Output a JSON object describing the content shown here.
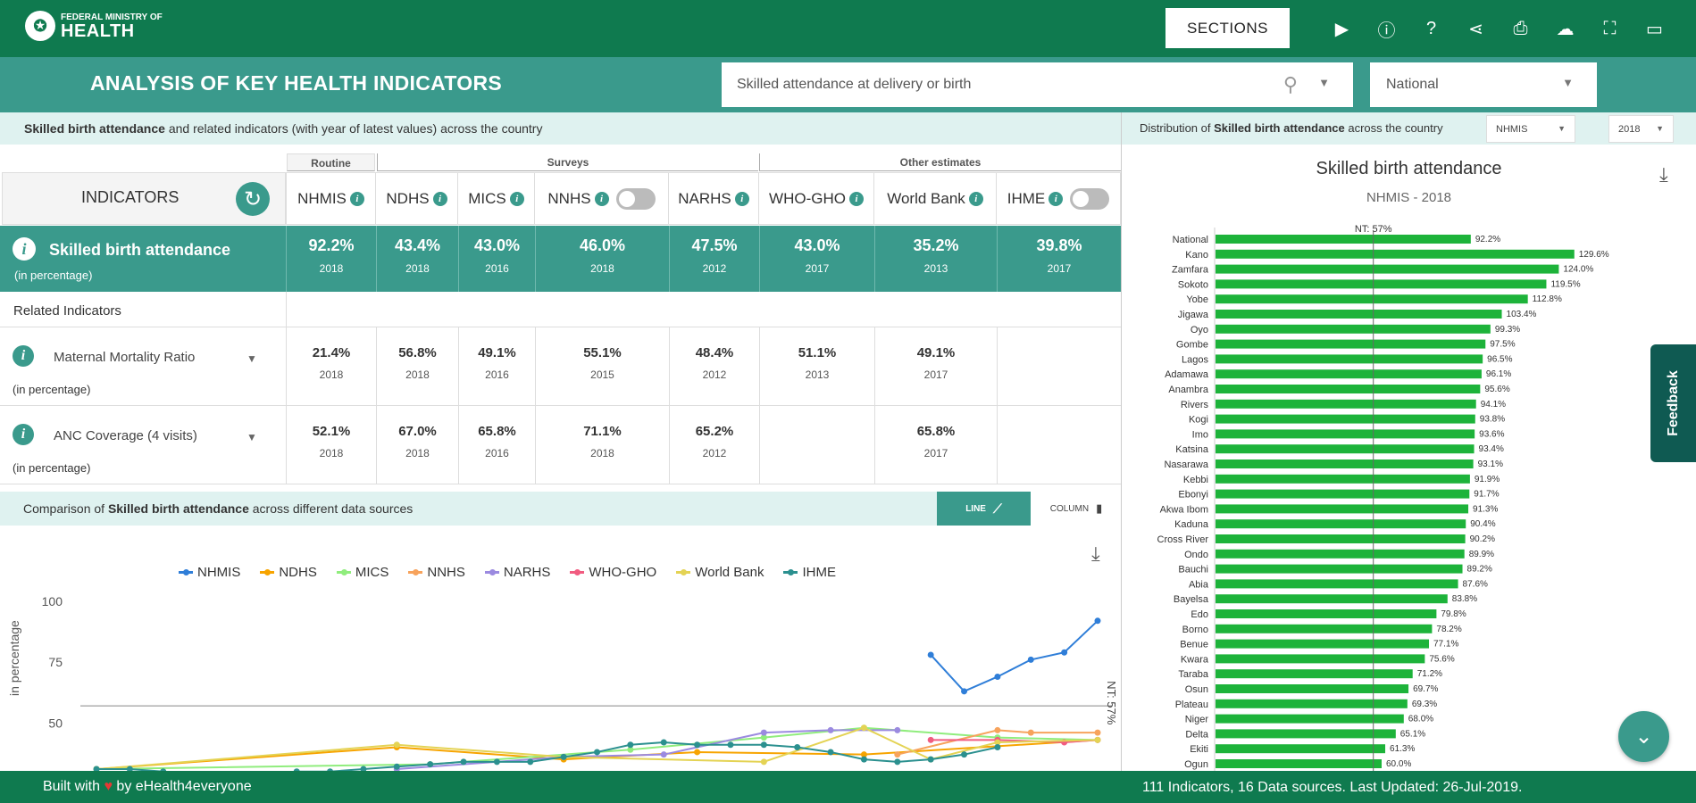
{
  "header": {
    "logo_top": "FEDERAL MINISTRY OF",
    "logo_main": "HEALTH",
    "sections_label": "SECTIONS",
    "icons": [
      "play-icon",
      "info-icon",
      "help-icon",
      "share-icon",
      "print-icon",
      "cloud-download-icon",
      "fullscreen-icon",
      "tablet-icon"
    ]
  },
  "subheader": {
    "title": "ANALYSIS OF KEY HEALTH INDICATORS",
    "search_value": "Skilled attendance at delivery or birth",
    "region_value": "National"
  },
  "indicators_band": {
    "bold": "Skilled birth attendance",
    "rest": " and related indicators (with year of latest values) across the country"
  },
  "distribution_band": {
    "prefix": "Distribution of ",
    "bold": "Skilled birth attendance",
    "suffix": " across the country",
    "source": "NHMIS",
    "year": "2018"
  },
  "table": {
    "groups": [
      "Routine",
      "Surveys",
      "Other estimates"
    ],
    "indicators_header": "INDICATORS",
    "columns": [
      "NHMIS",
      "NDHS",
      "MICS",
      "NNHS",
      "NARHS",
      "WHO-GHO",
      "World Bank",
      "IHME"
    ],
    "main": {
      "name": "Skilled birth attendance",
      "unit": "(in percentage)",
      "values": [
        {
          "v": "92.2%",
          "y": "2018"
        },
        {
          "v": "43.4%",
          "y": "2018"
        },
        {
          "v": "43.0%",
          "y": "2016"
        },
        {
          "v": "46.0%",
          "y": "2018"
        },
        {
          "v": "47.5%",
          "y": "2012"
        },
        {
          "v": "43.0%",
          "y": "2017"
        },
        {
          "v": "35.2%",
          "y": "2013"
        },
        {
          "v": "39.8%",
          "y": "2017"
        }
      ]
    },
    "related_label": "Related Indicators",
    "related": [
      {
        "name": "Maternal Mortality Ratio",
        "unit": "(in percentage)",
        "values": [
          {
            "v": "21.4%",
            "y": "2018"
          },
          {
            "v": "56.8%",
            "y": "2018"
          },
          {
            "v": "49.1%",
            "y": "2016"
          },
          {
            "v": "55.1%",
            "y": "2015"
          },
          {
            "v": "48.4%",
            "y": "2012"
          },
          {
            "v": "51.1%",
            "y": "2013"
          },
          {
            "v": "49.1%",
            "y": "2017"
          },
          {
            "v": "",
            "y": ""
          }
        ]
      },
      {
        "name": "ANC Coverage (4 visits)",
        "unit": "(in percentage)",
        "values": [
          {
            "v": "52.1%",
            "y": "2018"
          },
          {
            "v": "67.0%",
            "y": "2018"
          },
          {
            "v": "65.8%",
            "y": "2016"
          },
          {
            "v": "71.1%",
            "y": "2018"
          },
          {
            "v": "65.2%",
            "y": "2012"
          },
          {
            "v": "",
            "y": ""
          },
          {
            "v": "65.8%",
            "y": "2017"
          },
          {
            "v": "",
            "y": ""
          }
        ]
      }
    ]
  },
  "comparison": {
    "prefix": "Comparison of ",
    "bold": "Skilled birth attendance",
    "suffix": " across different data sources",
    "line_label": "LINE",
    "column_label": "COLUMN"
  },
  "chart_data": [
    {
      "type": "line",
      "ylabel": "in percentage",
      "ylim": [
        20,
        100
      ],
      "yticks": [
        25,
        50,
        75,
        100
      ],
      "reference": {
        "value": 57,
        "label": "NT: 57%"
      },
      "legend": "top",
      "series": [
        {
          "name": "NHMIS",
          "color": "#2f7ed8",
          "points": [
            [
              25,
              78
            ],
            [
              26,
              63
            ],
            [
              27,
              69
            ],
            [
              28,
              76
            ],
            [
              29,
              79
            ],
            [
              30,
              92
            ]
          ]
        },
        {
          "name": "NDHS",
          "color": "#f7a400",
          "points": [
            [
              0,
              31
            ],
            [
              9,
              40
            ],
            [
              14,
              35
            ],
            [
              18,
              38
            ],
            [
              23,
              37
            ],
            [
              30,
              43
            ]
          ]
        },
        {
          "name": "MICS",
          "color": "#90ed7d",
          "points": [
            [
              0,
              31
            ],
            [
              10,
              33
            ],
            [
              16,
              39
            ],
            [
              20,
              44
            ],
            [
              23,
              48
            ],
            [
              27,
              44
            ],
            [
              30,
              43
            ]
          ]
        },
        {
          "name": "NNHS",
          "color": "#f7a35c",
          "points": [
            [
              24,
              37
            ],
            [
              27,
              47
            ],
            [
              28,
              46
            ],
            [
              30,
              46
            ]
          ]
        },
        {
          "name": "NARHS",
          "color": "#9b8ae0",
          "points": [
            [
              9,
              31
            ],
            [
              14,
              36
            ],
            [
              17,
              37
            ],
            [
              20,
              46
            ],
            [
              22,
              47
            ],
            [
              24,
              47
            ]
          ]
        },
        {
          "name": "WHO-GHO",
          "color": "#f15c80",
          "points": [
            [
              25,
              43
            ],
            [
              27,
              43
            ],
            [
              29,
              42
            ],
            [
              30,
              43
            ]
          ]
        },
        {
          "name": "World Bank",
          "color": "#e4d354",
          "points": [
            [
              0,
              31
            ],
            [
              9,
              41
            ],
            [
              14,
              36
            ],
            [
              20,
              34
            ],
            [
              23,
              48
            ],
            [
              25,
              35
            ],
            [
              27,
              42
            ],
            [
              30,
              43
            ]
          ]
        },
        {
          "name": "IHME",
          "color": "#2b908f",
          "points": [
            [
              0,
              31
            ],
            [
              1,
              31
            ],
            [
              2,
              30
            ],
            [
              3,
              29
            ],
            [
              4,
              29
            ],
            [
              5,
              29
            ],
            [
              6,
              30
            ],
            [
              7,
              30
            ],
            [
              8,
              31
            ],
            [
              9,
              32
            ],
            [
              10,
              33
            ],
            [
              11,
              34
            ],
            [
              12,
              34
            ],
            [
              13,
              34
            ],
            [
              14,
              36
            ],
            [
              15,
              38
            ],
            [
              16,
              41
            ],
            [
              17,
              42
            ],
            [
              18,
              41
            ],
            [
              19,
              41
            ],
            [
              20,
              41
            ],
            [
              21,
              40
            ],
            [
              22,
              38
            ],
            [
              23,
              35
            ],
            [
              24,
              34
            ],
            [
              25,
              35
            ],
            [
              26,
              37
            ],
            [
              27,
              40
            ]
          ]
        }
      ]
    },
    {
      "type": "bar",
      "title": "Skilled birth attendance",
      "subtitle": "NHMIS - 2018",
      "reference": {
        "value": 57,
        "label": "NT: 57%"
      },
      "xlim": [
        0,
        140
      ],
      "color": "#1db33a",
      "categories": [
        "National",
        "Kano",
        "Zamfara",
        "Sokoto",
        "Yobe",
        "Jigawa",
        "Oyo",
        "Gombe",
        "Lagos",
        "Adamawa",
        "Anambra",
        "Rivers",
        "Kogi",
        "Imo",
        "Katsina",
        "Nasarawa",
        "Kebbi",
        "Ebonyi",
        "Akwa Ibom",
        "Kaduna",
        "Cross River",
        "Ondo",
        "Bauchi",
        "Abia",
        "Bayelsa",
        "Edo",
        "Borno",
        "Benue",
        "Kwara",
        "Taraba",
        "Osun",
        "Plateau",
        "Niger",
        "Delta",
        "Ekiti",
        "Ogun"
      ],
      "values": [
        92.2,
        129.6,
        124.0,
        119.5,
        112.8,
        103.4,
        99.3,
        97.5,
        96.5,
        96.1,
        95.6,
        94.1,
        93.8,
        93.6,
        93.4,
        93.1,
        91.9,
        91.7,
        91.3,
        90.4,
        90.2,
        89.9,
        89.2,
        87.6,
        83.8,
        79.8,
        78.2,
        77.1,
        75.6,
        71.2,
        69.7,
        69.3,
        68.0,
        65.1,
        61.3,
        60.0
      ],
      "labels": [
        "92.2%",
        "129.6%",
        "124.0%",
        "119.5%",
        "112.8%",
        "103.4%",
        "99.3%",
        "97.5%",
        "96.5%",
        "96.1%",
        "95.6%",
        "94.1%",
        "93.8%",
        "93.6%",
        "93.4%",
        "93.1%",
        "91.9%",
        "91.7%",
        "91.3%",
        "90.4%",
        "90.2%",
        "89.9%",
        "89.2%",
        "87.6%",
        "83.8%",
        "79.8%",
        "78.2%",
        "77.1%",
        "75.6%",
        "71.2%",
        "69.7%",
        "69.3%",
        "68.0%",
        "65.1%",
        "61.3%",
        "60.0%"
      ]
    }
  ],
  "feedback_label": "Feedback",
  "footer": {
    "built_prefix": "Built with ",
    "heart": "♥",
    "built_suffix": " by eHealth4everyone",
    "right": "111 Indicators, 16 Data sources. Last Updated: 26-Jul-2019."
  }
}
